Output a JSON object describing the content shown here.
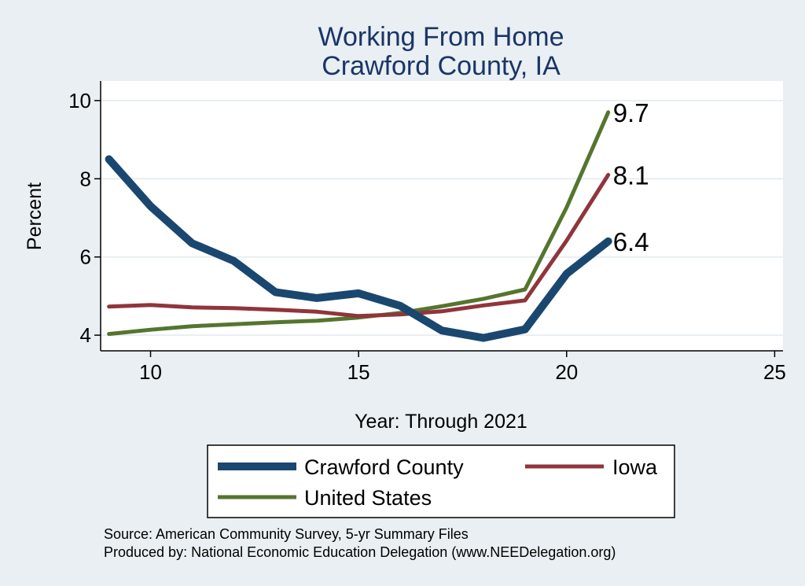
{
  "chart_data": {
    "type": "line",
    "title": "Working From Home",
    "subtitle": "Crawford County, IA",
    "xlabel": "Year: Through 2021",
    "ylabel": "Percent",
    "xlim": [
      8.8,
      25.2
    ],
    "ylim": [
      3.6,
      10.5
    ],
    "xticks": [
      10,
      15,
      20,
      25
    ],
    "yticks": [
      4,
      6,
      8,
      10
    ],
    "grid": true,
    "legend_position": "bottom",
    "series": [
      {
        "name": "Crawford County",
        "color": "#1a476f",
        "x": [
          9,
          10,
          11,
          12,
          13,
          14,
          15,
          16,
          17,
          18,
          19,
          20,
          21
        ],
        "values": [
          8.5,
          7.3,
          6.35,
          5.9,
          5.1,
          4.95,
          5.07,
          4.75,
          4.12,
          3.93,
          4.15,
          5.57,
          6.4
        ],
        "end_label": "6.4"
      },
      {
        "name": "Iowa",
        "color": "#90353b",
        "x": [
          9,
          10,
          11,
          12,
          13,
          14,
          15,
          16,
          17,
          18,
          19,
          20,
          21
        ],
        "values": [
          4.73,
          4.77,
          4.71,
          4.69,
          4.65,
          4.6,
          4.49,
          4.53,
          4.61,
          4.76,
          4.89,
          6.42,
          8.1
        ],
        "end_label": "8.1"
      },
      {
        "name": "United States",
        "color": "#55752f",
        "x": [
          9,
          10,
          11,
          12,
          13,
          14,
          15,
          16,
          17,
          18,
          19,
          20,
          21
        ],
        "values": [
          4.03,
          4.14,
          4.23,
          4.28,
          4.33,
          4.37,
          4.45,
          4.57,
          4.74,
          4.93,
          5.17,
          7.27,
          9.7
        ],
        "end_label": "9.7"
      }
    ],
    "source_lines": [
      "Source: American Community Survey, 5-yr Summary Files",
      "Produced by: National Economic Education Delegation (www.NEEDelegation.org)"
    ]
  }
}
